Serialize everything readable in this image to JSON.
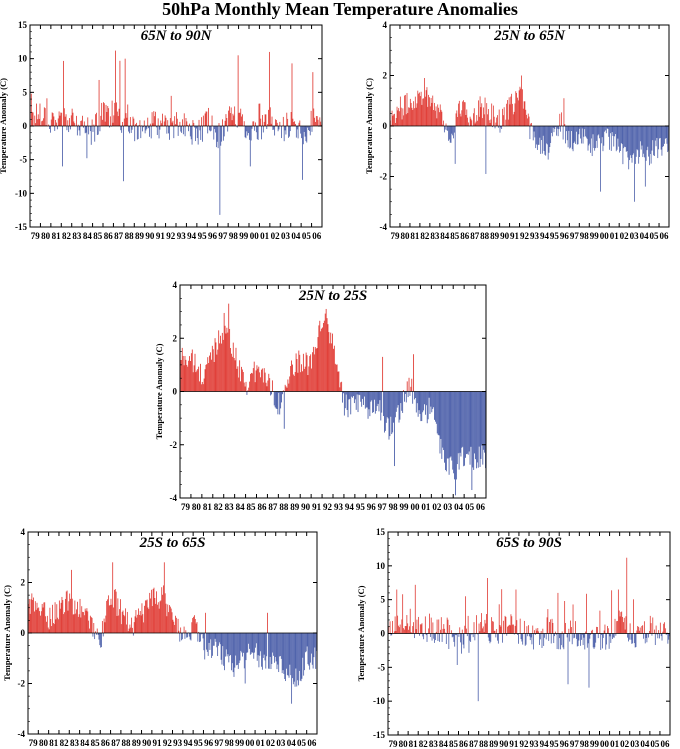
{
  "figure_title": "50hPa Monthly Mean Temperature Anomalies",
  "colors": {
    "positive": "#e03a33",
    "negative": "#4a5ea9",
    "axis": "#000000"
  },
  "chart_data": [
    {
      "type": "bar",
      "title": "65N to 90N",
      "ylabel": "Temperature Anomaly (C)",
      "ylim": [
        -15,
        15
      ],
      "yticks": [
        -15,
        -10,
        -5,
        0,
        5,
        10,
        15
      ],
      "xlim": [
        1979,
        2007
      ],
      "xtick_labels": [
        "79",
        "80",
        "81",
        "82",
        "83",
        "84",
        "85",
        "86",
        "87",
        "88",
        "89",
        "90",
        "91",
        "92",
        "93",
        "94",
        "95",
        "96",
        "97",
        "98",
        "99",
        "00",
        "01",
        "02",
        "03",
        "04",
        "05",
        "06"
      ],
      "x_unit": "year",
      "x_resolution": "monthly",
      "annual_values": [
        1.0,
        2.2,
        0.8,
        1.5,
        0.5,
        -0.3,
        -0.8,
        2.0,
        1.8,
        0.6,
        -0.2,
        -1.0,
        0.5,
        -0.4,
        0.1,
        -0.2,
        -1.4,
        0.8,
        -1.6,
        1.2,
        1.4,
        -0.6,
        -0.8,
        1.0,
        -0.4,
        0.5,
        -1.5,
        0.6
      ],
      "extremes": [
        {
          "x": 1987.2,
          "y": 11.2
        },
        {
          "x": 1988.1,
          "y": 10.0
        },
        {
          "x": 1987.9,
          "y": -8.2
        },
        {
          "x": 1997.2,
          "y": -13.2
        },
        {
          "x": 1998.9,
          "y": 10.5
        },
        {
          "x": 2001.9,
          "y": 11.0
        },
        {
          "x": 2004.1,
          "y": 9.3
        },
        {
          "x": 2005.1,
          "y": -8.0
        },
        {
          "x": 1982.1,
          "y": -6.0
        },
        {
          "x": 2000.1,
          "y": -6.0
        },
        {
          "x": 2006.1,
          "y": 8.0
        },
        {
          "x": 1979.1,
          "y": 4.8
        }
      ],
      "legend": "none",
      "grid": false
    },
    {
      "type": "bar",
      "title": "25N to 65N",
      "ylabel": "Temperature Anomaly (C)",
      "ylim": [
        -4,
        4
      ],
      "yticks": [
        -4,
        -2,
        0,
        2,
        4
      ],
      "xlim": [
        1979,
        2007
      ],
      "xtick_labels": [
        "79",
        "80",
        "81",
        "82",
        "83",
        "84",
        "85",
        "86",
        "87",
        "88",
        "89",
        "90",
        "91",
        "92",
        "93",
        "94",
        "95",
        "96",
        "97",
        "98",
        "99",
        "00",
        "01",
        "02",
        "03",
        "04",
        "05",
        "06"
      ],
      "x_unit": "year",
      "x_resolution": "monthly",
      "annual_values": [
        0.4,
        0.7,
        0.9,
        1.3,
        1.1,
        0.6,
        -0.6,
        0.8,
        0.3,
        0.8,
        0.5,
        0.2,
        0.7,
        1.4,
        -0.2,
        -0.6,
        -0.9,
        0.2,
        -0.6,
        -0.4,
        -0.8,
        -0.6,
        -0.5,
        -1.0,
        -1.3,
        -1.0,
        -1.1,
        -0.9
      ],
      "extremes": [
        {
          "x": 1982.4,
          "y": 1.9
        },
        {
          "x": 1992.2,
          "y": 2.0
        },
        {
          "x": 1985.5,
          "y": -1.5
        },
        {
          "x": 1988.6,
          "y": -1.9
        },
        {
          "x": 1996.4,
          "y": 1.1
        },
        {
          "x": 2003.5,
          "y": -3.0
        },
        {
          "x": 2000.1,
          "y": -2.6
        },
        {
          "x": 2004.6,
          "y": -2.4
        }
      ],
      "legend": "none",
      "grid": false
    },
    {
      "type": "bar",
      "title": "25N to 25S",
      "ylabel": "Temperature Anomaly (C)",
      "ylim": [
        -4,
        4
      ],
      "yticks": [
        -4,
        -2,
        0,
        2,
        4
      ],
      "xlim": [
        1979,
        2007
      ],
      "xtick_labels": [
        "79",
        "80",
        "81",
        "82",
        "83",
        "84",
        "85",
        "86",
        "87",
        "88",
        "89",
        "90",
        "91",
        "92",
        "93",
        "94",
        "95",
        "96",
        "97",
        "98",
        "99",
        "00",
        "01",
        "02",
        "03",
        "04",
        "05",
        "06"
      ],
      "x_unit": "year",
      "x_resolution": "monthly",
      "annual_values": [
        1.3,
        1.2,
        0.5,
        1.5,
        2.5,
        1.3,
        0.3,
        0.8,
        0.5,
        -0.5,
        0.6,
        1.2,
        0.9,
        2.8,
        1.8,
        -0.6,
        -0.5,
        -0.7,
        -0.4,
        -1.4,
        -0.7,
        0.2,
        -1.0,
        -0.6,
        -2.5,
        -3.0,
        -2.4,
        -2.5
      ],
      "extremes": [
        {
          "x": 1983.4,
          "y": 3.3
        },
        {
          "x": 1992.3,
          "y": 3.1
        },
        {
          "x": 1998.6,
          "y": -2.8
        },
        {
          "x": 2004.2,
          "y": -3.9
        },
        {
          "x": 2005.7,
          "y": -3.7
        },
        {
          "x": 1997.5,
          "y": 1.3
        },
        {
          "x": 2000.3,
          "y": 1.4
        },
        {
          "x": 1988.5,
          "y": -1.4
        }
      ],
      "legend": "none",
      "grid": false
    },
    {
      "type": "bar",
      "title": "25S to 65S",
      "ylabel": "Temperature Anomaly (C)",
      "ylim": [
        -4,
        4
      ],
      "yticks": [
        -4,
        -2,
        0,
        2,
        4
      ],
      "xlim": [
        1979,
        2007
      ],
      "xtick_labels": [
        "79",
        "80",
        "81",
        "82",
        "83",
        "84",
        "85",
        "86",
        "87",
        "88",
        "89",
        "90",
        "91",
        "92",
        "93",
        "94",
        "95",
        "96",
        "97",
        "98",
        "99",
        "00",
        "01",
        "02",
        "03",
        "04",
        "05",
        "06"
      ],
      "x_unit": "year",
      "x_resolution": "monthly",
      "annual_values": [
        1.2,
        1.0,
        0.6,
        1.0,
        1.3,
        0.9,
        0.5,
        -0.3,
        1.6,
        0.8,
        0.3,
        0.7,
        1.3,
        1.5,
        0.6,
        -0.2,
        0.3,
        -0.6,
        -0.5,
        -1.0,
        -1.3,
        -0.9,
        -0.8,
        -1.1,
        -1.0,
        -1.5,
        -1.8,
        -1.0
      ],
      "extremes": [
        {
          "x": 1987.2,
          "y": 2.8
        },
        {
          "x": 1992.2,
          "y": 2.8
        },
        {
          "x": 1983.2,
          "y": 2.5
        },
        {
          "x": 2004.5,
          "y": -2.8
        },
        {
          "x": 2000.0,
          "y": -2.0
        },
        {
          "x": 1996.2,
          "y": 0.8
        },
        {
          "x": 2002.2,
          "y": 0.8
        }
      ],
      "legend": "none",
      "grid": false
    },
    {
      "type": "bar",
      "title": "65S to 90S",
      "ylabel": "Temperature Anomaly (C)",
      "ylim": [
        -15,
        15
      ],
      "yticks": [
        -15,
        -10,
        -5,
        0,
        5,
        10,
        15
      ],
      "xlim": [
        1979,
        2007
      ],
      "xtick_labels": [
        "79",
        "80",
        "81",
        "82",
        "83",
        "84",
        "85",
        "86",
        "87",
        "88",
        "89",
        "90",
        "91",
        "92",
        "93",
        "94",
        "95",
        "96",
        "97",
        "98",
        "99",
        "00",
        "01",
        "02",
        "03",
        "04",
        "05",
        "06"
      ],
      "x_unit": "year",
      "x_resolution": "monthly",
      "annual_values": [
        1.0,
        0.8,
        1.2,
        0.6,
        0.5,
        0.4,
        0.3,
        -0.8,
        -1.2,
        1.8,
        0.5,
        0.2,
        1.0,
        0.4,
        -0.2,
        -0.5,
        0.6,
        -0.8,
        0.3,
        -0.6,
        -0.3,
        -0.4,
        -0.6,
        1.5,
        -0.3,
        -0.4,
        0.6,
        -0.4
      ],
      "extremes": [
        {
          "x": 1988.8,
          "y": 8.2
        },
        {
          "x": 1987.9,
          "y": -10.0
        },
        {
          "x": 2002.7,
          "y": 11.2
        },
        {
          "x": 1996.8,
          "y": -7.5
        },
        {
          "x": 1998.9,
          "y": -8.0
        },
        {
          "x": 1979.8,
          "y": 6.5
        },
        {
          "x": 2001.8,
          "y": 6.5
        },
        {
          "x": 1986.7,
          "y": 5.5
        },
        {
          "x": 1991.7,
          "y": 6.5
        },
        {
          "x": 1995.8,
          "y": 6.0
        }
      ],
      "legend": "none",
      "grid": false
    }
  ]
}
